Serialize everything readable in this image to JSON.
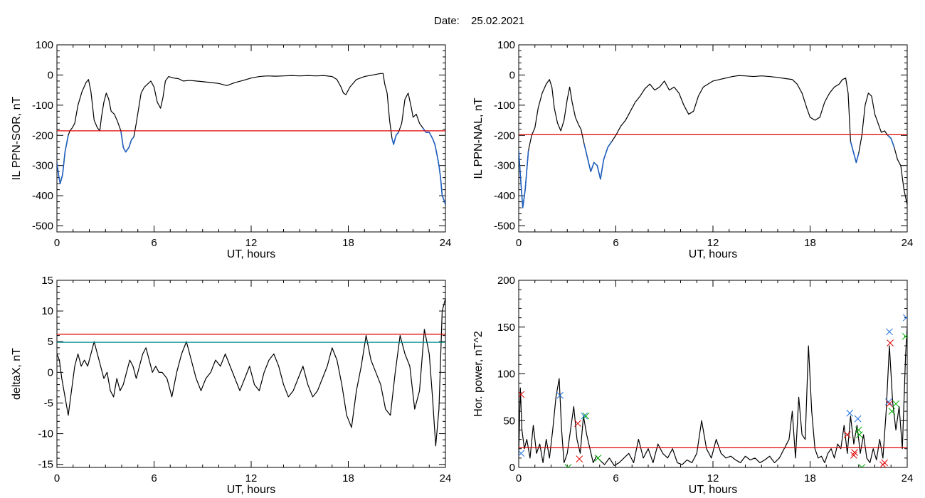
{
  "figure": {
    "date_label": "Date:",
    "date_value": "25.02.2021"
  },
  "chart_data": [
    {
      "type": "line",
      "panel": "top-left",
      "xlabel": "UT, hours",
      "ylabel": "IL PPN-SOR, nT",
      "xlim": [
        0,
        24
      ],
      "ylim": [
        -520,
        100
      ],
      "xticks": [
        0,
        6,
        12,
        18,
        24
      ],
      "yticks": [
        -500,
        -400,
        -300,
        -200,
        -100,
        0,
        100
      ],
      "threshold": -185,
      "threshold_color": "#e00000",
      "highlight_color": "#1f5fbf",
      "x": [
        0,
        0.1,
        0.2,
        0.35,
        0.5,
        0.7,
        0.8,
        0.95,
        1.1,
        1.3,
        1.55,
        1.8,
        1.95,
        2.1,
        2.3,
        2.5,
        2.65,
        2.75,
        2.9,
        3.05,
        3.2,
        3.35,
        3.55,
        3.75,
        3.95,
        4.1,
        4.25,
        4.45,
        4.6,
        4.75,
        4.9,
        5.05,
        5.2,
        5.4,
        5.6,
        5.8,
        6.0,
        6.2,
        6.4,
        6.55,
        6.7,
        6.9,
        7.2,
        7.5,
        7.8,
        8.2,
        8.6,
        9,
        9.5,
        10,
        10.5,
        11,
        11.5,
        12,
        12.5,
        13,
        13.5,
        14,
        14.5,
        15,
        15.5,
        16,
        16.5,
        17,
        17.3,
        17.55,
        17.7,
        17.85,
        18.1,
        18.5,
        19,
        19.5,
        20,
        20.15,
        20.25,
        20.4,
        20.55,
        20.7,
        20.8,
        20.95,
        21.1,
        21.3,
        21.5,
        21.7,
        21.9,
        22.0,
        22.2,
        22.4,
        22.6,
        22.8,
        23.0,
        23.2,
        23.35,
        23.5,
        23.6,
        23.7,
        23.8,
        23.95,
        24.0
      ],
      "y": [
        -290,
        -330,
        -360,
        -330,
        -255,
        -200,
        -185,
        -175,
        -160,
        -100,
        -55,
        -25,
        -15,
        -55,
        -150,
        -175,
        -185,
        -140,
        -90,
        -60,
        -80,
        -120,
        -130,
        -155,
        -185,
        -240,
        -255,
        -240,
        -215,
        -205,
        -160,
        -110,
        -60,
        -40,
        -30,
        -20,
        -40,
        -90,
        -110,
        -75,
        -20,
        -5,
        -10,
        -12,
        -20,
        -18,
        -20,
        -22,
        -25,
        -28,
        -35,
        -25,
        -18,
        -10,
        -5,
        -3,
        -4,
        -3,
        -2,
        -3,
        -2,
        -3,
        -2,
        -5,
        -15,
        -40,
        -60,
        -65,
        -40,
        -15,
        -5,
        0,
        5,
        5,
        -30,
        -60,
        -150,
        -210,
        -230,
        -200,
        -190,
        -160,
        -80,
        -60,
        -110,
        -140,
        -130,
        -160,
        -175,
        -190,
        -190,
        -210,
        -230,
        -270,
        -300,
        -340,
        -400,
        -420,
        -430
      ],
      "highlight_mask": [
        1,
        1,
        1,
        1,
        1,
        1,
        0,
        0,
        0,
        0,
        0,
        0,
        0,
        0,
        0,
        0,
        0,
        0,
        0,
        0,
        0,
        0,
        0,
        0,
        1,
        1,
        1,
        1,
        1,
        1,
        0,
        0,
        0,
        0,
        0,
        0,
        0,
        0,
        0,
        0,
        0,
        0,
        0,
        0,
        0,
        0,
        0,
        0,
        0,
        0,
        0,
        0,
        0,
        0,
        0,
        0,
        0,
        0,
        0,
        0,
        0,
        0,
        0,
        0,
        0,
        0,
        0,
        0,
        0,
        0,
        0,
        0,
        0,
        0,
        0,
        0,
        0,
        1,
        1,
        1,
        1,
        0,
        0,
        0,
        0,
        0,
        0,
        0,
        1,
        1,
        1,
        1,
        1,
        1,
        1,
        1,
        1,
        1,
        1
      ]
    },
    {
      "type": "line",
      "panel": "top-right",
      "xlabel": "UT, hours",
      "ylabel": "IL PPN-NAL, nT",
      "xlim": [
        0,
        24
      ],
      "ylim": [
        -520,
        100
      ],
      "xticks": [
        0,
        6,
        12,
        18,
        24
      ],
      "yticks": [
        -500,
        -400,
        -300,
        -200,
        -100,
        0,
        100
      ],
      "threshold": -198,
      "threshold_color": "#e00000",
      "highlight_color": "#1f5fbf",
      "x": [
        0,
        0.1,
        0.25,
        0.4,
        0.6,
        0.8,
        1.0,
        1.2,
        1.45,
        1.7,
        1.9,
        2.05,
        2.2,
        2.4,
        2.6,
        2.8,
        3.0,
        3.15,
        3.3,
        3.5,
        3.7,
        3.85,
        4.05,
        4.25,
        4.45,
        4.65,
        4.85,
        5.05,
        5.25,
        5.5,
        5.75,
        6.0,
        6.3,
        6.6,
        6.9,
        7.2,
        7.5,
        7.8,
        8.1,
        8.4,
        8.7,
        9.0,
        9.3,
        9.6,
        9.9,
        10.2,
        10.5,
        10.8,
        11.1,
        11.4,
        11.7,
        12.0,
        12.4,
        12.8,
        13.2,
        13.6,
        14.0,
        14.5,
        15.0,
        15.5,
        16.0,
        16.5,
        16.9,
        17.2,
        17.5,
        17.8,
        18.0,
        18.3,
        18.6,
        18.9,
        19.2,
        19.5,
        19.8,
        20.0,
        20.2,
        20.35,
        20.5,
        20.7,
        20.85,
        21.0,
        21.2,
        21.4,
        21.6,
        21.8,
        22.0,
        22.2,
        22.4,
        22.6,
        22.8,
        23.0,
        23.2,
        23.4,
        23.6,
        23.8,
        24.0
      ],
      "y": [
        -250,
        -330,
        -440,
        -380,
        -250,
        -200,
        -175,
        -110,
        -60,
        -30,
        -15,
        -40,
        -110,
        -160,
        -185,
        -150,
        -80,
        -40,
        -90,
        -140,
        -165,
        -180,
        -230,
        -275,
        -320,
        -290,
        -300,
        -345,
        -280,
        -240,
        -220,
        -200,
        -170,
        -150,
        -120,
        -90,
        -70,
        -45,
        -30,
        -50,
        -40,
        -20,
        -50,
        -40,
        -60,
        -100,
        -130,
        -120,
        -70,
        -40,
        -30,
        -20,
        -15,
        -10,
        -5,
        -2,
        -3,
        -5,
        -3,
        -5,
        -8,
        -12,
        -15,
        -30,
        -60,
        -110,
        -140,
        -150,
        -140,
        -90,
        -60,
        -40,
        -30,
        -15,
        -10,
        -60,
        -220,
        -260,
        -290,
        -260,
        -200,
        -100,
        -60,
        -70,
        -130,
        -160,
        -190,
        -185,
        -200,
        -210,
        -240,
        -280,
        -300,
        -380,
        -430
      ],
      "highlight_mask": [
        1,
        1,
        1,
        1,
        1,
        0,
        0,
        0,
        0,
        0,
        0,
        0,
        0,
        0,
        0,
        0,
        0,
        0,
        0,
        0,
        0,
        0,
        1,
        1,
        1,
        1,
        1,
        1,
        1,
        1,
        1,
        0,
        0,
        0,
        0,
        0,
        0,
        0,
        0,
        0,
        0,
        0,
        0,
        0,
        0,
        0,
        0,
        0,
        0,
        0,
        0,
        0,
        0,
        0,
        0,
        0,
        0,
        0,
        0,
        0,
        0,
        0,
        0,
        0,
        0,
        0,
        0,
        0,
        0,
        0,
        0,
        0,
        0,
        0,
        0,
        0,
        1,
        1,
        1,
        1,
        0,
        0,
        0,
        0,
        0,
        0,
        0,
        0,
        1,
        1,
        1,
        0,
        0,
        0,
        0
      ]
    },
    {
      "type": "line",
      "panel": "bottom-left",
      "xlabel": "UT, hours",
      "ylabel": "deltaX, nT",
      "xlim": [
        0,
        24
      ],
      "ylim": [
        -15.5,
        15
      ],
      "xticks": [
        0,
        6,
        12,
        18,
        24
      ],
      "yticks": [
        -15,
        -10,
        -5,
        0,
        5,
        10,
        15
      ],
      "threshold": 6.2,
      "threshold_color": "#e00000",
      "threshold2": 4.9,
      "threshold2_color": "#008b8b",
      "x": [
        0,
        0.15,
        0.3,
        0.5,
        0.7,
        0.9,
        1.1,
        1.3,
        1.5,
        1.7,
        1.9,
        2.1,
        2.3,
        2.5,
        2.7,
        2.9,
        3.1,
        3.3,
        3.5,
        3.7,
        3.9,
        4.1,
        4.3,
        4.5,
        4.7,
        4.9,
        5.1,
        5.3,
        5.5,
        5.7,
        5.9,
        6.1,
        6.3,
        6.5,
        6.8,
        7.1,
        7.4,
        7.7,
        8.0,
        8.3,
        8.6,
        8.9,
        9.2,
        9.5,
        9.8,
        10.1,
        10.4,
        10.7,
        11.0,
        11.3,
        11.6,
        11.9,
        12.2,
        12.5,
        12.8,
        13.1,
        13.4,
        13.7,
        14.0,
        14.3,
        14.6,
        14.9,
        15.2,
        15.5,
        15.8,
        16.1,
        16.4,
        16.7,
        17.0,
        17.3,
        17.6,
        17.9,
        18.2,
        18.5,
        18.8,
        19.1,
        19.4,
        19.7,
        20.0,
        20.3,
        20.6,
        20.9,
        21.2,
        21.5,
        21.8,
        22.1,
        22.4,
        22.7,
        23.0,
        23.2,
        23.4,
        23.6,
        23.8,
        24.0
      ],
      "y": [
        3,
        2,
        -1,
        -4,
        -7,
        -3,
        1,
        3,
        1,
        2,
        1,
        3,
        5,
        3,
        1,
        -1,
        0,
        -3,
        -4,
        -1,
        -3,
        -2,
        0,
        2,
        1,
        -1,
        1,
        3,
        4,
        2,
        0,
        1,
        0,
        0,
        -1,
        -4,
        0,
        3,
        5,
        2,
        -1,
        -3,
        -1,
        0,
        2,
        1,
        3,
        1,
        -1,
        -3,
        -1,
        1,
        -2,
        -3,
        0,
        2,
        3,
        1,
        -2,
        -4,
        -3,
        -1,
        1,
        -2,
        -4,
        -3,
        -1,
        1,
        4,
        2,
        -2,
        -7,
        -9,
        -3,
        1,
        6,
        2,
        0,
        -2,
        -6,
        -7,
        0,
        6,
        3,
        1,
        -6,
        -3,
        7,
        3,
        -4,
        -12,
        -6,
        10,
        12
      ],
      "highlight_mask": []
    },
    {
      "type": "line",
      "panel": "bottom-right",
      "xlabel": "UT, hours",
      "ylabel": "Hor. power, nT^2",
      "xlim": [
        0,
        24
      ],
      "ylim": [
        0,
        200
      ],
      "xticks": [
        0,
        6,
        12,
        18,
        24
      ],
      "yticks": [
        0,
        50,
        100,
        150,
        200
      ],
      "threshold": 21,
      "threshold_color": "#e00000",
      "x": [
        0,
        0.1,
        0.2,
        0.35,
        0.5,
        0.7,
        0.9,
        1.1,
        1.3,
        1.5,
        1.7,
        1.9,
        2.1,
        2.3,
        2.5,
        2.65,
        2.8,
        3.0,
        3.2,
        3.4,
        3.6,
        3.8,
        4.0,
        4.2,
        4.4,
        4.6,
        4.8,
        5.0,
        5.3,
        5.6,
        5.9,
        6.2,
        6.5,
        6.8,
        7.1,
        7.4,
        7.7,
        8.0,
        8.3,
        8.6,
        8.9,
        9.2,
        9.5,
        9.8,
        10.1,
        10.4,
        10.7,
        11.0,
        11.3,
        11.6,
        11.9,
        12.2,
        12.5,
        12.8,
        13.1,
        13.4,
        13.7,
        14.0,
        14.3,
        14.6,
        14.9,
        15.2,
        15.5,
        15.8,
        16.1,
        16.4,
        16.7,
        16.9,
        17.1,
        17.3,
        17.5,
        17.7,
        17.9,
        18.1,
        18.3,
        18.5,
        18.7,
        18.9,
        19.1,
        19.3,
        19.5,
        19.7,
        19.9,
        20.1,
        20.3,
        20.5,
        20.7,
        20.9,
        21.1,
        21.3,
        21.5,
        21.7,
        21.9,
        22.1,
        22.3,
        22.5,
        22.7,
        22.9,
        23.1,
        23.3,
        23.5,
        23.7,
        23.9,
        24.0
      ],
      "y": [
        12,
        85,
        40,
        20,
        30,
        10,
        45,
        15,
        25,
        5,
        30,
        10,
        40,
        75,
        95,
        40,
        5,
        15,
        40,
        65,
        30,
        15,
        55,
        35,
        20,
        5,
        12,
        8,
        3,
        10,
        2,
        5,
        10,
        15,
        5,
        30,
        10,
        20,
        5,
        25,
        15,
        10,
        20,
        5,
        3,
        8,
        5,
        15,
        50,
        20,
        10,
        30,
        15,
        10,
        12,
        8,
        5,
        12,
        8,
        10,
        5,
        8,
        12,
        5,
        10,
        20,
        30,
        60,
        10,
        75,
        35,
        30,
        130,
        60,
        20,
        10,
        12,
        5,
        15,
        20,
        10,
        25,
        20,
        45,
        15,
        55,
        25,
        45,
        15,
        35,
        10,
        5,
        20,
        8,
        30,
        10,
        60,
        130,
        70,
        40,
        65,
        20,
        120,
        150
      ],
      "markers": [
        {
          "x": 0.15,
          "y": 78,
          "color": "#e00000"
        },
        {
          "x": 0.15,
          "y": 15,
          "color": "#1f6fdf"
        },
        {
          "x": 2.55,
          "y": 77,
          "color": "#1f6fdf"
        },
        {
          "x": 3.05,
          "y": 0,
          "color": "#00b000"
        },
        {
          "x": 3.65,
          "y": 47,
          "color": "#e00000"
        },
        {
          "x": 3.75,
          "y": 9,
          "color": "#e00000"
        },
        {
          "x": 4.05,
          "y": 55,
          "color": "#1f6fdf"
        },
        {
          "x": 4.15,
          "y": 55,
          "color": "#00b000"
        },
        {
          "x": 4.9,
          "y": 10,
          "color": "#00b000"
        },
        {
          "x": 20.3,
          "y": 35,
          "color": "#e00000"
        },
        {
          "x": 20.45,
          "y": 58,
          "color": "#1f6fdf"
        },
        {
          "x": 20.7,
          "y": 13,
          "color": "#e00000"
        },
        {
          "x": 20.75,
          "y": 16,
          "color": "#e00000"
        },
        {
          "x": 20.95,
          "y": 52,
          "color": "#1f6fdf"
        },
        {
          "x": 21.0,
          "y": 40,
          "color": "#00b000"
        },
        {
          "x": 21.05,
          "y": 35,
          "color": "#00b000"
        },
        {
          "x": 21.2,
          "y": 0,
          "color": "#00b000"
        },
        {
          "x": 22.5,
          "y": 3,
          "color": "#e00000"
        },
        {
          "x": 22.6,
          "y": 5,
          "color": "#e00000"
        },
        {
          "x": 22.9,
          "y": 145,
          "color": "#1f6fdf"
        },
        {
          "x": 22.95,
          "y": 133,
          "color": "#e00000"
        },
        {
          "x": 22.85,
          "y": 70,
          "color": "#1f6fdf"
        },
        {
          "x": 22.9,
          "y": 68,
          "color": "#e00000"
        },
        {
          "x": 23.05,
          "y": 60,
          "color": "#00b000"
        },
        {
          "x": 23.3,
          "y": 68,
          "color": "#00b000"
        },
        {
          "x": 23.95,
          "y": 160,
          "color": "#1f6fdf"
        },
        {
          "x": 23.9,
          "y": 140,
          "color": "#00b000"
        }
      ]
    }
  ]
}
